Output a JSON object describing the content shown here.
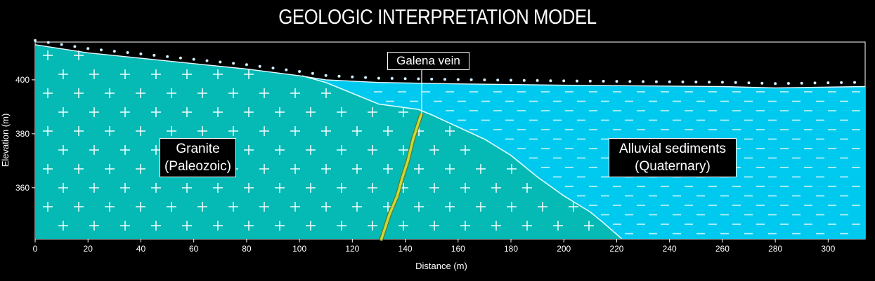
{
  "title": "GEOLOGIC INTERPRETATION MODEL",
  "chart_data": {
    "type": "cross-section",
    "xlabel": "Distance (m)",
    "ylabel": "Elevation (m)",
    "xlim": [
      0,
      314
    ],
    "ylim": [
      341,
      414
    ],
    "x_ticks": [
      0,
      20,
      40,
      60,
      80,
      100,
      120,
      140,
      160,
      180,
      200,
      220,
      240,
      260,
      280,
      300
    ],
    "y_ticks": [
      360,
      380,
      400
    ],
    "units": {
      "Granite": {
        "line1": "Granite",
        "line2": "(Paleozoic)",
        "color": "#05b9b5"
      },
      "Alluvial": {
        "line1": "Alluvial sediments",
        "line2": "(Quaternary)",
        "color": "#00c9ef"
      }
    },
    "vein": {
      "label": "Galena vein",
      "color": "#c8d93a"
    },
    "topography": [
      [
        0,
        413
      ],
      [
        20,
        410
      ],
      [
        40,
        408
      ],
      [
        60,
        406
      ],
      [
        80,
        404
      ],
      [
        100,
        401.5
      ],
      [
        110,
        400
      ],
      [
        130,
        399
      ],
      [
        160,
        398.5
      ],
      [
        200,
        398
      ],
      [
        260,
        397.5
      ],
      [
        280,
        397
      ],
      [
        314,
        397.5
      ]
    ],
    "contact": [
      [
        101,
        401.5
      ],
      [
        110,
        399
      ],
      [
        120,
        395
      ],
      [
        130,
        391
      ],
      [
        145,
        389
      ],
      [
        150,
        387
      ],
      [
        170,
        378
      ],
      [
        180,
        372
      ],
      [
        190,
        364
      ],
      [
        200,
        357
      ],
      [
        210,
        351
      ],
      [
        215,
        347
      ],
      [
        222,
        341
      ]
    ],
    "vein_trace": [
      [
        146,
        387
      ],
      [
        143,
        378
      ],
      [
        141,
        370
      ],
      [
        139,
        364
      ],
      [
        137,
        357
      ],
      [
        134,
        350
      ],
      [
        132,
        344
      ],
      [
        131,
        341
      ]
    ],
    "survey_points": {
      "x_start": 0,
      "x_end": 314,
      "spacing": 5
    }
  }
}
